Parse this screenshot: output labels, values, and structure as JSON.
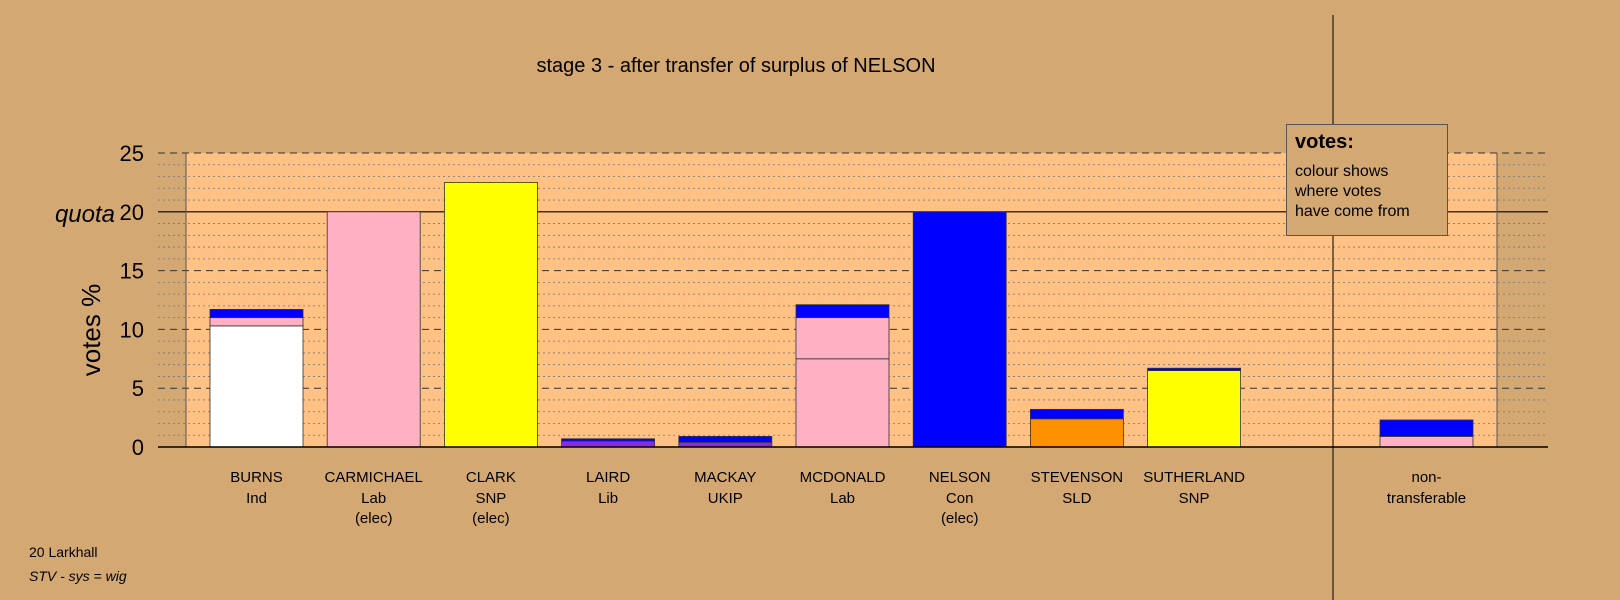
{
  "chart_data": {
    "type": "bar",
    "stacked": true,
    "title": "stage 3 - after transfer of surplus of NELSON",
    "ylabel": "votes %",
    "ylim": [
      0,
      25
    ],
    "yticks": [
      0,
      5,
      10,
      15,
      20,
      25
    ],
    "quota": {
      "label": "quota",
      "value": 20
    },
    "colors": {
      "white": "#ffffff",
      "pink": "#ffb0c3",
      "yellow": "#ffff00",
      "blue": "#0000ff",
      "purple": "#8a2be2",
      "orange": "#ff9000"
    },
    "candidates": [
      {
        "name": "BURNS",
        "party": "Ind",
        "status": "",
        "segments": [
          {
            "color": "white",
            "value": 10.3
          },
          {
            "color": "pink",
            "value": 0.7
          },
          {
            "color": "blue",
            "value": 0.7
          }
        ]
      },
      {
        "name": "CARMICHAEL",
        "party": "Lab",
        "status": "(elec)",
        "segments": [
          {
            "color": "pink",
            "value": 20.0
          }
        ]
      },
      {
        "name": "CLARK",
        "party": "SNP",
        "status": "(elec)",
        "segments": [
          {
            "color": "yellow",
            "value": 22.5
          }
        ]
      },
      {
        "name": "LAIRD",
        "party": "Lib",
        "status": "",
        "segments": [
          {
            "color": "purple",
            "value": 0.5
          },
          {
            "color": "blue",
            "value": 0.2
          }
        ]
      },
      {
        "name": "MACKAY",
        "party": "UKIP",
        "status": "",
        "segments": [
          {
            "color": "purple",
            "value": 0.4
          },
          {
            "color": "blue",
            "value": 0.5
          }
        ]
      },
      {
        "name": "MCDONALD",
        "party": "Lab",
        "status": "",
        "segments": [
          {
            "color": "pink",
            "value": 7.5
          },
          {
            "color": "pink",
            "value": 3.5
          },
          {
            "color": "blue",
            "value": 1.1
          }
        ]
      },
      {
        "name": "NELSON",
        "party": "Con",
        "status": "(elec)",
        "segments": [
          {
            "color": "blue",
            "value": 20.0
          }
        ]
      },
      {
        "name": "STEVENSON",
        "party": "SLD",
        "status": "",
        "segments": [
          {
            "color": "orange",
            "value": 2.4
          },
          {
            "color": "blue",
            "value": 0.8
          }
        ]
      },
      {
        "name": "SUTHERLAND",
        "party": "SNP",
        "status": "",
        "segments": [
          {
            "color": "yellow",
            "value": 6.5
          },
          {
            "color": "blue",
            "value": 0.2
          }
        ]
      }
    ],
    "nontransferable": {
      "label_line1": "non-",
      "label_line2": "transferable",
      "segments": [
        {
          "color": "pink",
          "value": 0.9
        },
        {
          "color": "blue",
          "value": 1.4
        }
      ]
    }
  },
  "legend": {
    "title": "votes:",
    "line1": "colour shows",
    "line2": "where votes",
    "line3": "have come from"
  },
  "footer": {
    "ward": "20 Larkhall",
    "system": "STV - sys = wig"
  }
}
